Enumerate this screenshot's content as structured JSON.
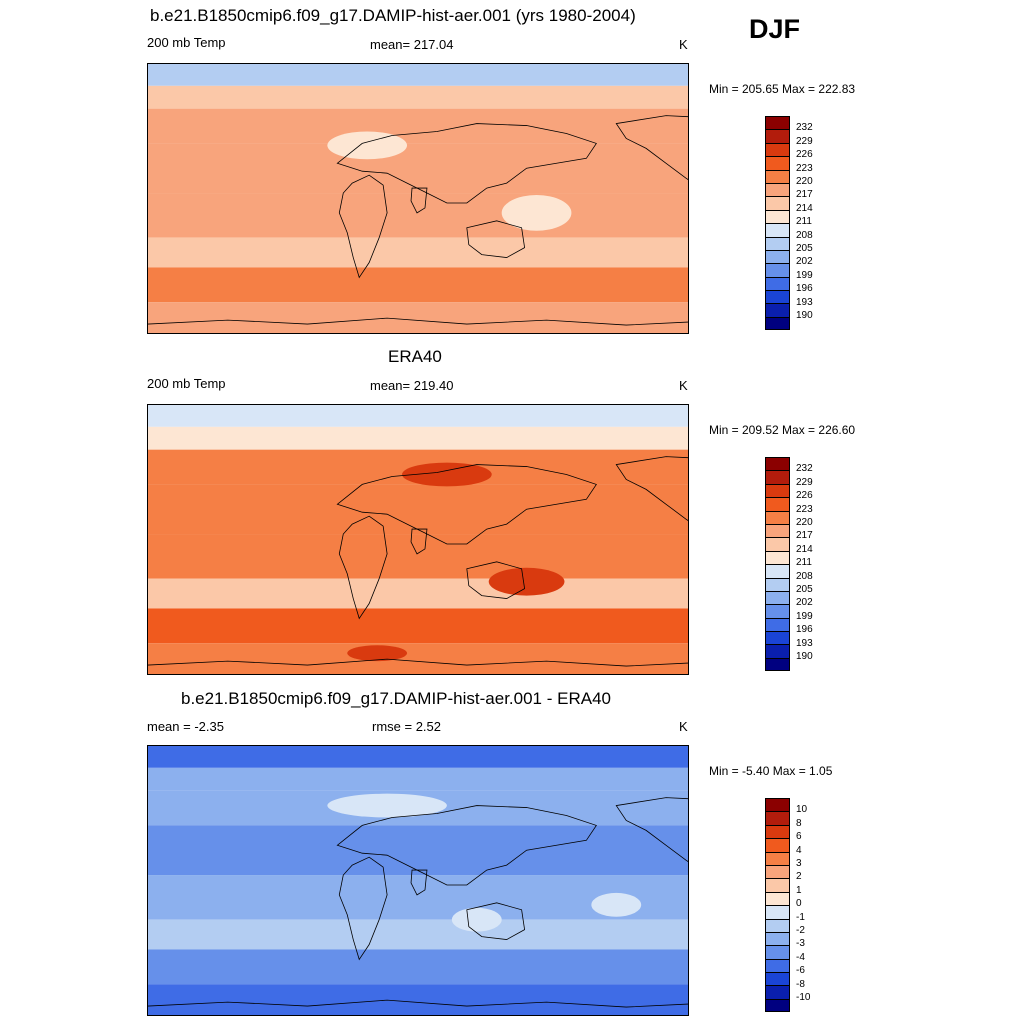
{
  "season": "DJF",
  "panels": [
    {
      "title": "b.e21.B1850cmip6.f09_g17.DAMIP-hist-aer.001 (yrs 1980-2004)",
      "left_label": "200 mb Temp",
      "center_label": "mean= 217.04",
      "units": "K",
      "minmax": "Min = 205.65 Max = 222.83",
      "colorbar": {
        "labels": [
          "232",
          "229",
          "226",
          "223",
          "220",
          "217",
          "214",
          "211",
          "208",
          "205",
          "202",
          "199",
          "196",
          "193",
          "190"
        ],
        "colors": [
          "#8b0000",
          "#b21c0c",
          "#d93a0f",
          "#f05a1e",
          "#f57f45",
          "#f8a47c",
          "#fbc8a8",
          "#fde6d3",
          "#d8e6f7",
          "#b3cdf2",
          "#8cb0ee",
          "#6690ea",
          "#3f6ce6",
          "#1a44d6",
          "#0a1fae",
          "#000080"
        ]
      },
      "map_bands": [
        "#b3cdf2",
        "#fbc8a8",
        "#f8a47c",
        "#f8a47c",
        "#f8a47c",
        "#fbc8a8",
        "#f57f45",
        "#f8a47c"
      ]
    },
    {
      "title": "ERA40",
      "left_label": "200 mb Temp",
      "center_label": "mean= 219.40",
      "units": "K",
      "minmax": "Min = 209.52 Max = 226.60",
      "colorbar": {
        "labels": [
          "232",
          "229",
          "226",
          "223",
          "220",
          "217",
          "214",
          "211",
          "208",
          "205",
          "202",
          "199",
          "196",
          "193",
          "190"
        ],
        "colors": [
          "#8b0000",
          "#b21c0c",
          "#d93a0f",
          "#f05a1e",
          "#f57f45",
          "#f8a47c",
          "#fbc8a8",
          "#fde6d3",
          "#d8e6f7",
          "#b3cdf2",
          "#8cb0ee",
          "#6690ea",
          "#3f6ce6",
          "#1a44d6",
          "#0a1fae",
          "#000080"
        ]
      },
      "map_bands": [
        "#d8e6f7",
        "#fde6d3",
        "#f57f45",
        "#f57f45",
        "#f57f45",
        "#fbc8a8",
        "#f05a1e",
        "#f57f45"
      ]
    },
    {
      "title": "b.e21.B1850cmip6.f09_g17.DAMIP-hist-aer.001 - ERA40",
      "left_label": "mean =  -2.35",
      "center_label": "rmse =   2.52",
      "units": "K",
      "minmax": "Min =  -5.40 Max =   1.05",
      "colorbar": {
        "labels": [
          "10",
          "8",
          "6",
          "4",
          "3",
          "2",
          "1",
          "0",
          "-1",
          "-2",
          "-3",
          "-4",
          "-6",
          "-8",
          "-10"
        ],
        "colors": [
          "#8b0000",
          "#b21c0c",
          "#d93a0f",
          "#f05a1e",
          "#f57f45",
          "#f8a47c",
          "#fbc8a8",
          "#fde6d3",
          "#d8e6f7",
          "#b3cdf2",
          "#8cb0ee",
          "#6690ea",
          "#3f6ce6",
          "#1a44d6",
          "#0a1fae",
          "#000080"
        ]
      },
      "map_bands": [
        "#3f6ce6",
        "#8cb0ee",
        "#8cb0ee",
        "#6690ea",
        "#8cb0ee",
        "#b3cdf2",
        "#6690ea",
        "#3f6ce6"
      ]
    }
  ]
}
